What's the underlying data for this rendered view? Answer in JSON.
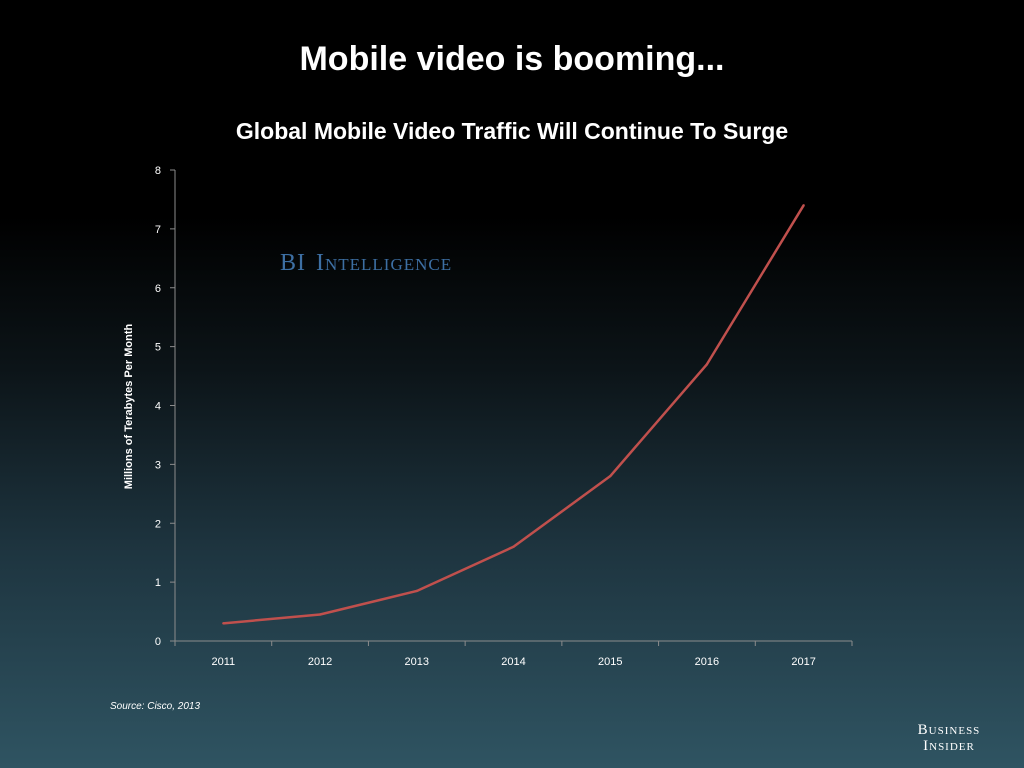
{
  "slide": {
    "title": "Mobile video is booming...",
    "source": "Source: Cisco, 2013",
    "watermark": {
      "part1": "BI",
      "part2": "Intelligence"
    },
    "brand": {
      "line1": "Business",
      "line2": "Insider"
    }
  },
  "colors": {
    "line": "#c0504d",
    "axis": "#8c8c8c",
    "watermark": "#3d6fa3"
  },
  "chart_data": {
    "type": "line",
    "title": "Global Mobile Video Traffic Will Continue To Surge",
    "xlabel": "",
    "ylabel": "Millions of Terabytes Per Month",
    "categories": [
      "2011",
      "2012",
      "2013",
      "2014",
      "2015",
      "2016",
      "2017"
    ],
    "series": [
      {
        "values": [
          0.3,
          0.45,
          0.85,
          1.6,
          2.8,
          4.7,
          7.4
        ]
      }
    ],
    "ylim": [
      0,
      8
    ],
    "yticks": [
      0,
      1,
      2,
      3,
      4,
      5,
      6,
      7,
      8
    ],
    "grid": false,
    "legend": "none"
  }
}
